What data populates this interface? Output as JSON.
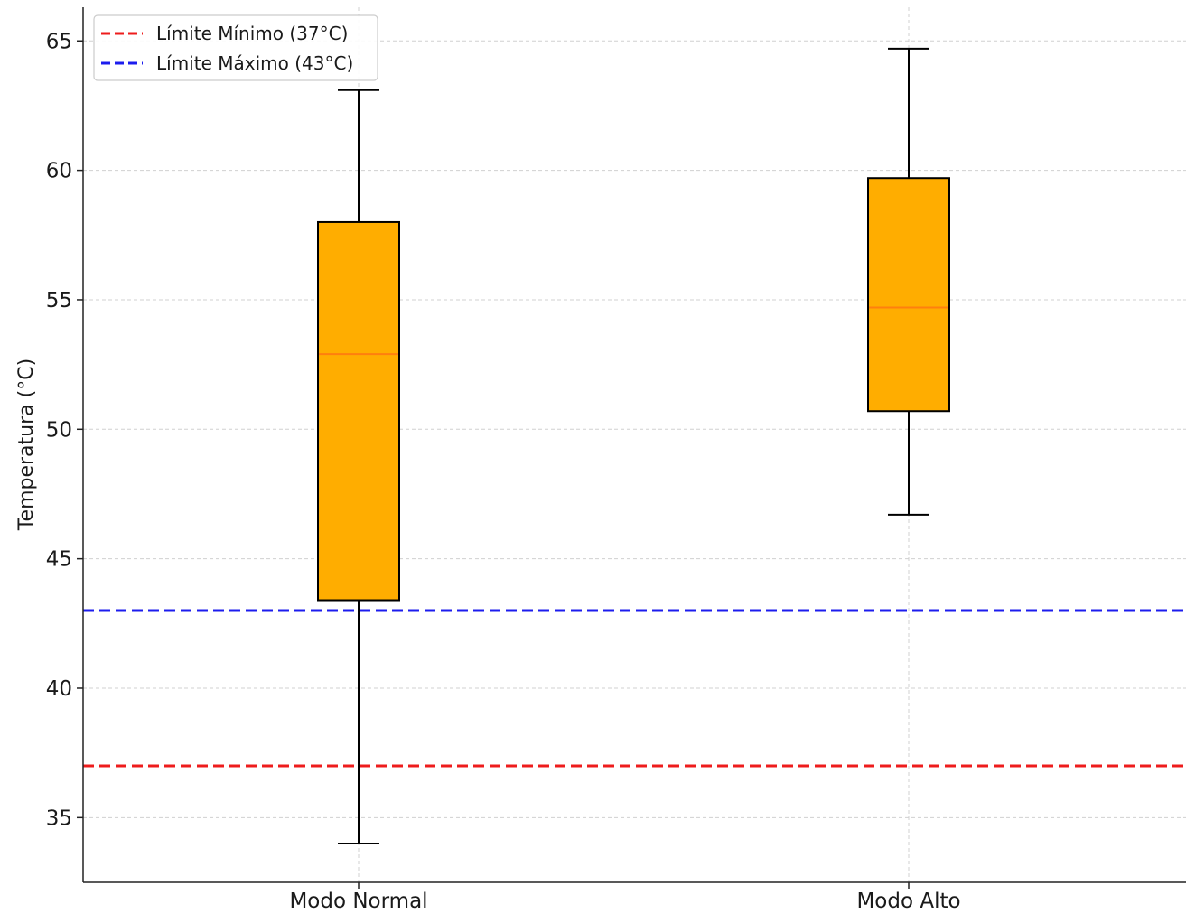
{
  "chart_data": {
    "type": "boxplot",
    "title": "",
    "xlabel": "",
    "ylabel": "Temperatura (°C)",
    "categories": [
      "Modo Normal",
      "Modo Alto"
    ],
    "boxes": [
      {
        "category": "Modo Normal",
        "whisker_low": 34.0,
        "q1": 43.4,
        "median": 52.9,
        "q3": 58.0,
        "whisker_high": 63.1
      },
      {
        "category": "Modo Alto",
        "whisker_low": 46.7,
        "q1": 50.7,
        "median": 54.7,
        "q3": 59.7,
        "whisker_high": 64.7
      }
    ],
    "reference_lines": [
      {
        "label": "Límite Mínimo (37°C)",
        "y": 37,
        "color": "#ee1c1c",
        "style": "dashed"
      },
      {
        "label": "Límite Máximo (43°C)",
        "y": 43,
        "color": "#1c1cee",
        "style": "dashed"
      }
    ],
    "ylim": [
      32.5,
      66.3
    ],
    "yticks": [
      35,
      40,
      45,
      50,
      55,
      60,
      65
    ],
    "grid": true,
    "legend_position": "top-left",
    "colors": {
      "box_fill": "#ffad00",
      "median": "#ff7f0e",
      "grid": "#d0d0d0",
      "axis": "#222222"
    }
  }
}
